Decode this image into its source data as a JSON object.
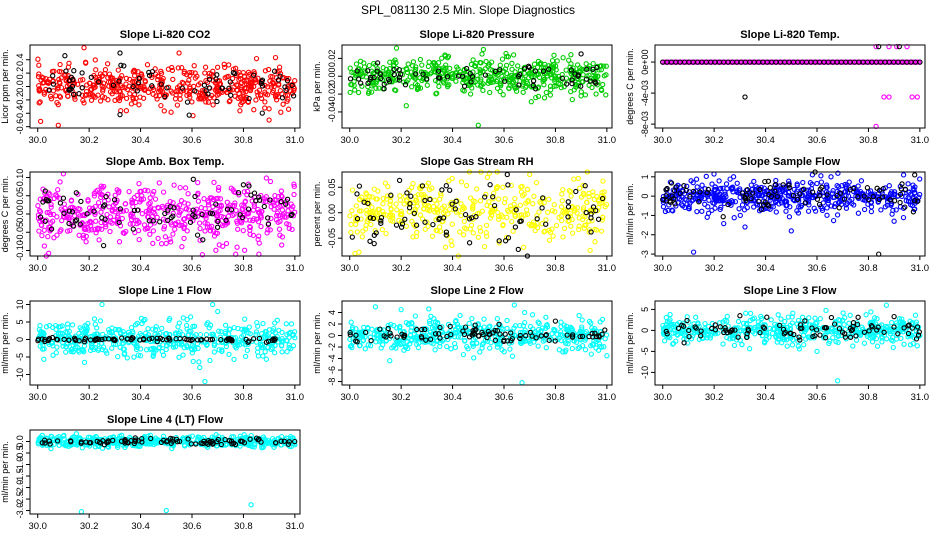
{
  "figure": {
    "title": "SPL_081130  2.5 Min. Slope Diagnostics"
  },
  "chart_data": [
    {
      "type": "scatter",
      "title": "Slope Li-820 CO2",
      "xlabel": "",
      "ylabel": "Licor ppm per min.",
      "xlim": [
        29.97,
        31.02
      ],
      "ylim": [
        -0.62,
        0.62
      ],
      "x_ticks": [
        "30.0",
        "30.2",
        "30.4",
        "30.6",
        "30.8",
        "31.0"
      ],
      "x_tick_values": [
        30.0,
        30.2,
        30.4,
        30.6,
        30.8,
        31.0
      ],
      "y_ticks": [
        "-0.6",
        "-0.4",
        "-0.2",
        "0.0",
        "0.2",
        "0.4"
      ],
      "y_tick_values": [
        -0.6,
        -0.4,
        -0.2,
        0.0,
        0.2,
        0.4
      ],
      "series": [
        {
          "color": "#ff0000",
          "n": 500,
          "sigma": 0.15,
          "outliers": [
            [
              30.08,
              -0.58
            ],
            [
              30.18,
              0.58
            ],
            [
              30.9,
              -0.5
            ],
            [
              30.55,
              0.5
            ]
          ]
        },
        {
          "color": "#000000",
          "n": 70,
          "sigma": 0.15,
          "outliers": [
            [
              30.32,
              0.5
            ],
            [
              30.32,
              -0.42
            ]
          ]
        }
      ]
    },
    {
      "type": "scatter",
      "title": "Slope Li-820 Pressure",
      "xlabel": "",
      "ylabel": "kPa per min.",
      "xlim": [
        29.97,
        31.02
      ],
      "ylim": [
        -0.058,
        0.035
      ],
      "x_ticks": [
        "30.0",
        "30.2",
        "30.4",
        "30.6",
        "30.8",
        "31.0"
      ],
      "x_tick_values": [
        30.0,
        30.2,
        30.4,
        30.6,
        30.8,
        31.0
      ],
      "y_ticks": [
        "-0.04",
        "-0.02",
        "0.00",
        "0.02"
      ],
      "y_tick_values": [
        -0.04,
        -0.02,
        0.0,
        0.02
      ],
      "series": [
        {
          "color": "#00cc00",
          "n": 500,
          "sigma": 0.01,
          "outliers": [
            [
              30.5,
              -0.055
            ],
            [
              30.22,
              -0.033
            ],
            [
              30.9,
              -0.022
            ],
            [
              30.52,
              0.03
            ]
          ]
        },
        {
          "color": "#000000",
          "n": 70,
          "sigma": 0.007,
          "outliers": [
            [
              30.9,
              0.025
            ]
          ]
        }
      ]
    },
    {
      "type": "scatter",
      "title": "Slope Li-820 Temp.",
      "xlabel": "",
      "ylabel": "degrees C per min.",
      "xlim": [
        29.97,
        31.02
      ],
      "ylim": [
        -0.0085,
        0.0022
      ],
      "x_ticks": [
        "30.0",
        "30.2",
        "30.4",
        "30.6",
        "30.8",
        "31.0"
      ],
      "x_tick_values": [
        30.0,
        30.2,
        30.4,
        30.6,
        30.8,
        31.0
      ],
      "y_ticks": [
        "-8e-03",
        "-4e-03",
        "0e+00"
      ],
      "y_tick_values": [
        -0.008,
        -0.004,
        0.0
      ],
      "series": [
        {
          "color": "#ff00ff",
          "n": 0,
          "sigma": 0,
          "line_y": 0,
          "line_n": 180,
          "outliers": [
            [
              30.83,
              0.002
            ],
            [
              30.88,
              0.002
            ],
            [
              30.91,
              0.002
            ],
            [
              30.95,
              0.002
            ],
            [
              30.86,
              -0.0045
            ],
            [
              30.88,
              -0.0045
            ],
            [
              30.97,
              -0.0045
            ],
            [
              30.99,
              -0.0045
            ],
            [
              30.83,
              -0.0083
            ]
          ]
        },
        {
          "color": "#000000",
          "n": 0,
          "sigma": 0,
          "line_y": 0,
          "line_n": 60,
          "outliers": [
            [
              30.32,
              -0.0045
            ],
            [
              30.84,
              0.002
            ],
            [
              30.92,
              0.002
            ]
          ]
        }
      ]
    },
    {
      "type": "scatter",
      "title": "Slope Amb. Box Temp.",
      "xlabel": "",
      "ylabel": "degrees C per min.",
      "xlim": [
        29.97,
        31.02
      ],
      "ylim": [
        -0.115,
        0.115
      ],
      "x_ticks": [
        "30.0",
        "30.2",
        "30.4",
        "30.6",
        "30.8",
        "31.0"
      ],
      "x_tick_values": [
        30.0,
        30.2,
        30.4,
        30.6,
        30.8,
        31.0
      ],
      "y_ticks": [
        "-0.10",
        "-0.05",
        "0.00",
        "0.05",
        "0.10"
      ],
      "y_tick_values": [
        -0.1,
        -0.05,
        0.0,
        0.05,
        0.1
      ],
      "series": [
        {
          "color": "#ff00ff",
          "n": 520,
          "sigma": 0.038,
          "outliers": [
            [
              30.1,
              0.11
            ],
            [
              30.77,
              -0.11
            ],
            [
              30.86,
              -0.11
            ]
          ]
        },
        {
          "color": "#000000",
          "n": 80,
          "sigma": 0.035,
          "outliers": [
            [
              30.8,
              0.08
            ]
          ]
        }
      ]
    },
    {
      "type": "scatter",
      "title": "Slope Gas Stream RH",
      "xlabel": "",
      "ylabel": "percent per min.",
      "xlim": [
        29.97,
        31.02
      ],
      "ylim": [
        -0.085,
        0.08
      ],
      "x_ticks": [
        "30.0",
        "30.2",
        "30.4",
        "30.6",
        "30.8",
        "31.0"
      ],
      "x_tick_values": [
        30.0,
        30.2,
        30.4,
        30.6,
        30.8,
        31.0
      ],
      "y_ticks": [
        "-0.05",
        "0.00",
        "0.05"
      ],
      "y_tick_values": [
        -0.05,
        0.0,
        0.05
      ],
      "series": [
        {
          "color": "#ffff00",
          "n": 420,
          "sigma": 0.032,
          "outliers": [
            [
              30.02,
              -0.08
            ],
            [
              30.7,
              0.075
            ]
          ]
        },
        {
          "color": "#000000",
          "n": 80,
          "sigma": 0.03,
          "outliers": []
        }
      ]
    },
    {
      "type": "scatter",
      "title": "Slope Sample Flow",
      "xlabel": "",
      "ylabel": "ml/min per min.",
      "xlim": [
        29.97,
        31.02
      ],
      "ylim": [
        -3.1,
        1.25
      ],
      "x_ticks": [
        "30.0",
        "30.2",
        "30.4",
        "30.6",
        "30.8",
        "31.0"
      ],
      "x_tick_values": [
        30.0,
        30.2,
        30.4,
        30.6,
        30.8,
        31.0
      ],
      "y_ticks": [
        "-3",
        "-2",
        "-1",
        "0",
        "1"
      ],
      "y_tick_values": [
        -3,
        -2,
        -1,
        0,
        1
      ],
      "series": [
        {
          "color": "#0000ff",
          "n": 520,
          "sigma": 0.42,
          "outliers": [
            [
              30.12,
              -2.9
            ],
            [
              30.5,
              -1.8
            ],
            [
              30.32,
              -1.6
            ],
            [
              30.9,
              -1.3
            ]
          ]
        },
        {
          "color": "#000000",
          "n": 90,
          "sigma": 0.38,
          "outliers": [
            [
              30.98,
              1.1
            ],
            [
              30.84,
              -3.0
            ]
          ]
        }
      ]
    },
    {
      "type": "scatter",
      "title": "Slope Line 1 Flow",
      "xlabel": "",
      "ylabel": "ml/min per min.",
      "xlim": [
        29.97,
        31.02
      ],
      "ylim": [
        -13,
        11
      ],
      "x_ticks": [
        "30.0",
        "30.2",
        "30.4",
        "30.6",
        "30.8",
        "31.0"
      ],
      "x_tick_values": [
        30.0,
        30.2,
        30.4,
        30.6,
        30.8,
        31.0
      ],
      "y_ticks": [
        "-10",
        "-5",
        "0",
        "5",
        "10"
      ],
      "y_tick_values": [
        -10,
        -5,
        0,
        5,
        10
      ],
      "series": [
        {
          "color": "#00ffff",
          "n": 480,
          "sigma": 2.6,
          "outliers": [
            [
              30.65,
              -12
            ],
            [
              30.7,
              8
            ],
            [
              30.68,
              10
            ],
            [
              30.25,
              10
            ],
            [
              30.63,
              -8
            ]
          ]
        },
        {
          "color": "#000000",
          "n": 90,
          "sigma": 0.25,
          "outliers": []
        }
      ]
    },
    {
      "type": "scatter",
      "title": "Slope Line 2 Flow",
      "xlabel": "",
      "ylabel": "ml/min per min.",
      "xlim": [
        29.97,
        31.02
      ],
      "ylim": [
        -8.6,
        6
      ],
      "x_ticks": [
        "30.0",
        "30.2",
        "30.4",
        "30.6",
        "30.8",
        "31.0"
      ],
      "x_tick_values": [
        30.0,
        30.2,
        30.4,
        30.6,
        30.8,
        31.0
      ],
      "y_ticks": [
        "-8",
        "-6",
        "-4",
        "-2",
        "0",
        "2",
        "4"
      ],
      "y_tick_values": [
        -8,
        -6,
        -4,
        -2,
        0,
        2,
        4
      ],
      "series": [
        {
          "color": "#00ffff",
          "n": 480,
          "sigma": 1.4,
          "outliers": [
            [
              30.67,
              -8.2
            ],
            [
              30.1,
              5
            ],
            [
              30.2,
              4.5
            ],
            [
              30.68,
              4
            ],
            [
              31.0,
              -3.5
            ]
          ]
        },
        {
          "color": "#000000",
          "n": 90,
          "sigma": 0.8,
          "outliers": [
            [
              30.8,
              2.5
            ]
          ]
        }
      ]
    },
    {
      "type": "scatter",
      "title": "Slope Line 3 Flow",
      "xlabel": "",
      "ylabel": "ml/min per min.",
      "xlim": [
        29.97,
        31.02
      ],
      "ylim": [
        -13,
        7
      ],
      "x_ticks": [
        "30.0",
        "30.2",
        "30.4",
        "30.6",
        "30.8",
        "31.0"
      ],
      "x_tick_values": [
        30.0,
        30.2,
        30.4,
        30.6,
        30.8,
        31.0
      ],
      "y_ticks": [
        "-10",
        "-5",
        "0",
        "5"
      ],
      "y_tick_values": [
        -10,
        -5,
        0,
        5
      ],
      "series": [
        {
          "color": "#00ffff",
          "n": 480,
          "sigma": 1.6,
          "outliers": [
            [
              30.68,
              -12
            ],
            [
              30.87,
              6
            ],
            [
              30.6,
              -5
            ]
          ]
        },
        {
          "color": "#000000",
          "n": 90,
          "sigma": 1.2,
          "outliers": [
            [
              30.3,
              3.5
            ]
          ]
        }
      ]
    },
    {
      "type": "scatter",
      "title": "Slope Line 4 (LT) Flow",
      "xlabel": "",
      "ylabel": "ml/min per min.",
      "xlim": [
        29.97,
        31.02
      ],
      "ylim": [
        -3.15,
        0.5
      ],
      "x_ticks": [
        "30.0",
        "30.2",
        "30.4",
        "30.6",
        "30.8",
        "31.0"
      ],
      "x_tick_values": [
        30.0,
        30.2,
        30.4,
        30.6,
        30.8,
        31.0
      ],
      "y_ticks": [
        "-3.0",
        "-2.5",
        "-2.0",
        "-1.5",
        "-1.0",
        "-0.5",
        "0.0"
      ],
      "y_tick_values": [
        -3.0,
        -2.5,
        -2.0,
        -1.5,
        -1.0,
        -0.5,
        0.0
      ],
      "series": [
        {
          "color": "#00ffff",
          "n": 480,
          "sigma": 0.12,
          "outliers": [
            [
              30.17,
              -3.05
            ],
            [
              30.5,
              -3.0
            ],
            [
              30.83,
              -2.75
            ]
          ]
        },
        {
          "color": "#000000",
          "n": 90,
          "sigma": 0.07,
          "outliers": []
        }
      ]
    }
  ]
}
